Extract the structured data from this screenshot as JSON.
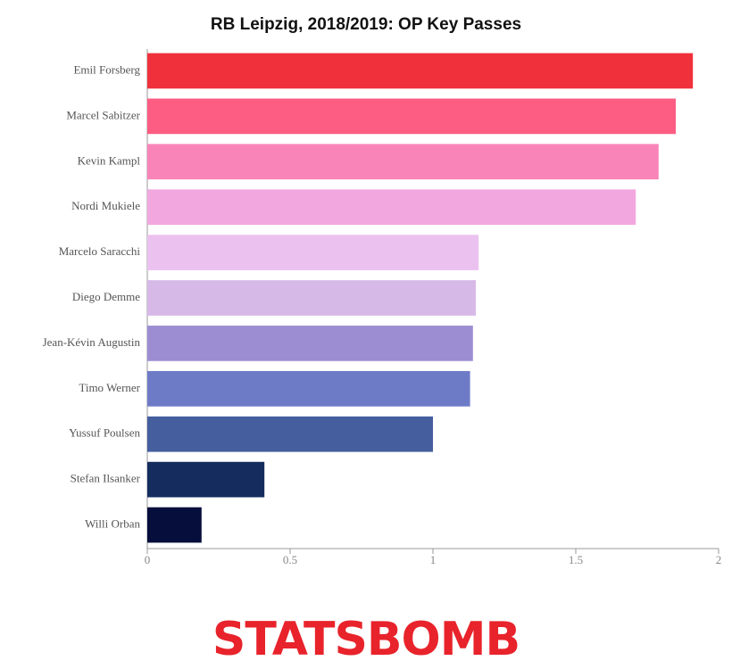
{
  "chart_data": {
    "type": "barh",
    "title": "RB Leipzig, 2018/2019: OP Key Passes",
    "categories": [
      "Emil Forsberg",
      "Marcel Sabitzer",
      "Kevin Kampl",
      "Nordi Mukiele",
      "Marcelo Saracchi",
      "Diego Demme",
      "Jean-Kévin Augustin",
      "Timo Werner",
      "Yussuf Poulsen",
      "Stefan Ilsanker",
      "Willi Orban"
    ],
    "values": [
      1.91,
      1.85,
      1.79,
      1.71,
      1.16,
      1.15,
      1.14,
      1.13,
      1.0,
      0.41,
      0.19
    ],
    "colors": [
      "#f0313b",
      "#fd5c83",
      "#f985b8",
      "#f2a8de",
      "#ebc2ef",
      "#d7b9e8",
      "#9c8dd2",
      "#6d7bc7",
      "#445e9e",
      "#152d5e",
      "#060e3c"
    ],
    "xlim": [
      0,
      2
    ],
    "xticks": [
      0,
      0.5,
      1,
      1.5,
      2
    ],
    "grid": false
  },
  "logo": "STATSBOMB"
}
